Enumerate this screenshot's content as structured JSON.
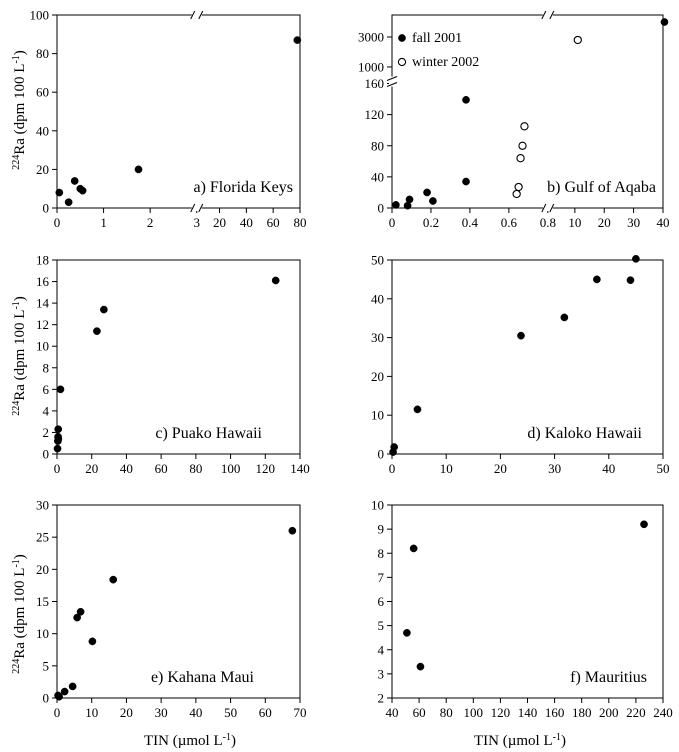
{
  "figure": {
    "ylabel_sup": "224",
    "ylabel_rest": "Ra (dpm 100 L",
    "ylabel_exp": "-1",
    "ylabel_close": ")",
    "xlabel_main": "TIN (µmol L",
    "xlabel_exp": "-1",
    "xlabel_close": ")"
  },
  "chart_data": [
    {
      "type": "scatter",
      "title": "a) Florida Keys",
      "broken_x_axis": true,
      "x_segments": [
        {
          "range": [
            0,
            3
          ],
          "ticks": [
            0,
            1,
            2,
            3
          ]
        },
        {
          "range": [
            20,
            80
          ],
          "ticks": [
            20,
            40,
            60,
            80
          ]
        }
      ],
      "ylim": [
        0,
        100
      ],
      "yticks": [
        0,
        20,
        40,
        60,
        80,
        100
      ],
      "series": [
        {
          "marker": "filled",
          "points": [
            [
              0.05,
              8
            ],
            [
              0.25,
              3
            ],
            [
              0.38,
              14
            ],
            [
              0.5,
              10
            ],
            [
              0.55,
              9
            ],
            [
              1.75,
              20
            ],
            [
              78,
              87
            ]
          ]
        }
      ]
    },
    {
      "type": "scatter",
      "title": "b) Gulf of Aqaba",
      "broken_x_axis": true,
      "broken_y_axis": true,
      "x_segments": [
        {
          "range": [
            0,
            0.8
          ],
          "ticks": [
            0,
            0.2,
            0.4,
            0.6,
            0.8
          ]
        },
        {
          "range": [
            10,
            40
          ],
          "ticks": [
            10,
            20,
            30,
            40
          ]
        }
      ],
      "y_segments": [
        {
          "range": [
            0,
            160
          ],
          "ticks": [
            0,
            40,
            80,
            120,
            160
          ]
        },
        {
          "range": [
            1000,
            3000
          ],
          "ticks": [
            1000,
            3000
          ]
        }
      ],
      "legend": [
        "fall 2001",
        "winter 2002"
      ],
      "series": [
        {
          "name": "fall 2001",
          "marker": "filled",
          "points": [
            [
              0.02,
              4
            ],
            [
              0.08,
              3
            ],
            [
              0.09,
              11
            ],
            [
              0.18,
              20
            ],
            [
              0.21,
              9
            ],
            [
              0.38,
              34
            ],
            [
              0.38,
              139
            ],
            [
              40.5,
              4000
            ]
          ]
        },
        {
          "name": "winter 2002",
          "marker": "open",
          "points": [
            [
              0.64,
              18
            ],
            [
              0.65,
              27
            ],
            [
              0.66,
              64
            ],
            [
              0.67,
              80
            ],
            [
              0.68,
              105
            ],
            [
              11,
              2800
            ]
          ]
        }
      ]
    },
    {
      "type": "scatter",
      "title": "c) Puako Hawaii",
      "xlim": [
        0,
        140
      ],
      "xticks": [
        0,
        20,
        40,
        60,
        80,
        100,
        120,
        140
      ],
      "ylim": [
        0,
        18
      ],
      "yticks": [
        0,
        2,
        4,
        6,
        8,
        10,
        12,
        14,
        16,
        18
      ],
      "series": [
        {
          "marker": "filled",
          "points": [
            [
              0.3,
              0.5
            ],
            [
              0.5,
              1.2
            ],
            [
              0.6,
              1.6
            ],
            [
              0.7,
              2.3
            ],
            [
              0.8,
              1.4
            ],
            [
              2,
              6
            ],
            [
              23,
              11.4
            ],
            [
              27,
              13.4
            ],
            [
              126,
              16.1
            ]
          ]
        }
      ]
    },
    {
      "type": "scatter",
      "title": "d) Kaloko Hawaii",
      "xlim": [
        0,
        50
      ],
      "xticks": [
        0,
        10,
        20,
        30,
        40,
        50
      ],
      "ylim": [
        0,
        50
      ],
      "yticks": [
        0,
        10,
        20,
        30,
        40,
        50
      ],
      "series": [
        {
          "marker": "filled",
          "points": [
            [
              0.2,
              0.5
            ],
            [
              0.4,
              1.8
            ],
            [
              4.7,
              11.5
            ],
            [
              23.8,
              30.5
            ],
            [
              31.8,
              35.2
            ],
            [
              37.8,
              45
            ],
            [
              44,
              44.8
            ],
            [
              45,
              50.3
            ]
          ]
        }
      ]
    },
    {
      "type": "scatter",
      "title": "e) Kahana Maui",
      "xlim": [
        0,
        70
      ],
      "xticks": [
        0,
        10,
        20,
        30,
        40,
        50,
        60,
        70
      ],
      "ylim": [
        0,
        30
      ],
      "yticks": [
        0,
        5,
        10,
        15,
        20,
        25,
        30
      ],
      "series": [
        {
          "marker": "filled",
          "points": [
            [
              0.3,
              0.4
            ],
            [
              0.6,
              0.2
            ],
            [
              2.2,
              1
            ],
            [
              4.5,
              1.8
            ],
            [
              5.8,
              12.5
            ],
            [
              6.8,
              13.4
            ],
            [
              10.2,
              8.8
            ],
            [
              16.2,
              18.4
            ],
            [
              67.8,
              26
            ]
          ]
        }
      ]
    },
    {
      "type": "scatter",
      "title": "f) Mauritius",
      "xlim": [
        40,
        240
      ],
      "xticks": [
        40,
        60,
        80,
        100,
        120,
        140,
        160,
        180,
        200,
        220,
        240
      ],
      "ylim": [
        2,
        10
      ],
      "yticks": [
        2,
        3,
        4,
        5,
        6,
        7,
        8,
        9,
        10
      ],
      "series": [
        {
          "marker": "filled",
          "points": [
            [
              51,
              4.7
            ],
            [
              56,
              8.2
            ],
            [
              61,
              3.3
            ],
            [
              226,
              9.2
            ]
          ]
        }
      ]
    }
  ]
}
